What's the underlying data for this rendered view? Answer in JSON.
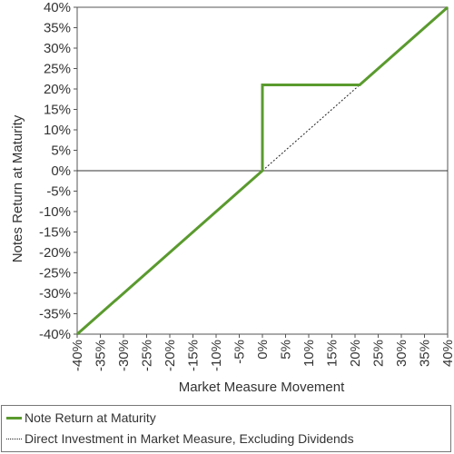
{
  "chart_data": {
    "type": "line",
    "xlabel": "Market Measure Movement",
    "ylabel": "Notes Return at Maturity",
    "xlim": [
      -40,
      40
    ],
    "ylim": [
      -40,
      40
    ],
    "x_ticks": [
      "-40%",
      "-35%",
      "-30%",
      "-25%",
      "-20%",
      "-15%",
      "-10%",
      "-5%",
      "0%",
      "5%",
      "10%",
      "15%",
      "20%",
      "25%",
      "30%",
      "35%",
      "40%"
    ],
    "y_ticks": [
      "40%",
      "35%",
      "30%",
      "25%",
      "20%",
      "15%",
      "10%",
      "5%",
      "0%",
      "-5%",
      "-10%",
      "-15%",
      "-20%",
      "-25%",
      "-30%",
      "-35%",
      "-40%"
    ],
    "grid": false,
    "legend_position": "bottom",
    "series": [
      {
        "name": "Note Return at Maturity",
        "color": "#5a9a2e",
        "style": "solid",
        "points": [
          [
            -40,
            -40
          ],
          [
            0,
            0
          ],
          [
            0,
            21
          ],
          [
            21,
            21
          ],
          [
            40,
            40
          ]
        ]
      },
      {
        "name": "Direct Investment in Market Measure, Excluding Dividends",
        "color": "#222222",
        "style": "dotted",
        "points": [
          [
            0,
            0
          ],
          [
            21,
            21
          ]
        ]
      }
    ]
  }
}
